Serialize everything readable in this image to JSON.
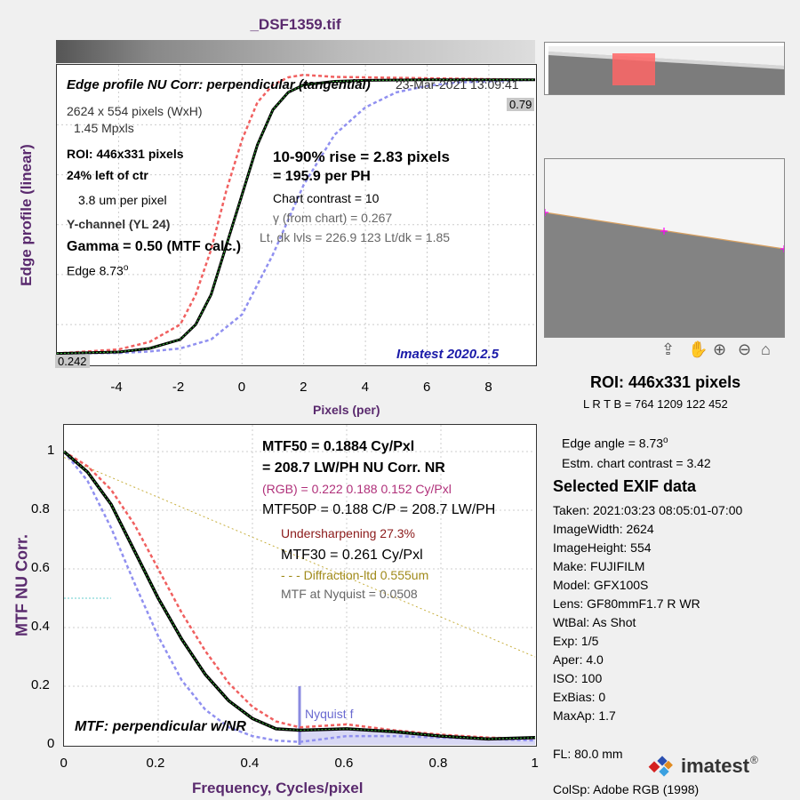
{
  "file_title": "_DSF1359.tif",
  "top_plot": {
    "title": "Edge profile  NU Corr: perpendicular (tangential)",
    "timestamp": "23-Mar-2021 13:09:41",
    "dims": "2624 x 554 pixels (WxH)",
    "mpxls": "1.45 Mpxls",
    "roi": "ROI:  446x331 pixels",
    "left_of_ctr": "24% left of ctr",
    "um_per_pixel": "3.8 um per pixel",
    "channel": "Y-channel  (YL 24)",
    "gamma": "Gamma = 0.50 (MTF calc.)",
    "edge_label": "Edge   8.73",
    "edge_deg": "o",
    "rise": "10-90% rise = 2.83 pixels",
    "per_ph": "=  195.9 per PH",
    "chart_contrast": "Chart contrast = 10",
    "gamma_chart": "γ (from chart) = 0.267",
    "levels": "Lt, dk lvls = 226.9  123  Lt/dk = 1.85",
    "version": "Imatest 2020.2.5",
    "max_label": "0.79",
    "min_label": "0.242",
    "xlabel": "Pixels (per)",
    "ylabel": "Edge profile (linear)",
    "xticks": [
      "-4",
      "-2",
      "0",
      "2",
      "4",
      "6",
      "8"
    ]
  },
  "right_panel": {
    "roi_title": "ROI:  446x331 pixels",
    "lrtb": "L R  T B = 764  1209   122  452",
    "edge_angle": "Edge angle = 8.73",
    "edge_angle_deg": "o",
    "estm_contrast": "Estm. chart contrast = 3.42",
    "exif_title": "Selected EXIF data",
    "exif": [
      "Taken: 2021:03:23 08:05:01-07:00",
      "ImageWidth:  2624",
      "ImageHeight:  554",
      "Make:  FUJIFILM",
      "Model:  GFX100S",
      "Lens:   GF80mmF1.7 R WR",
      "WtBal:  As Shot",
      "Exp:    1/5",
      "Aper:   4.0",
      "ISO:    100",
      "ExBias:  0",
      "MaxAp:  1.7"
    ],
    "fl": "FL:      80.0 mm",
    "colsp": "ColSp:  Adobe RGB (1998)",
    "brand": "imatest",
    "brand_mark": "®"
  },
  "bottom_plot": {
    "mtf50": "MTF50 = 0.1884 Cy/Pxl",
    "mtf50_lwph": "= 208.7 LW/PH  NU Corr.  NR",
    "rgb": "(RGB) = 0.222  0.188  0.152 Cy/Pxl",
    "mtf50p": "MTF50P = 0.188 C/P = 208.7 LW/PH",
    "undersharp": "Undersharpening 27.3%",
    "mtf30": "MTF30 = 0.261 Cy/Pxl",
    "diffraction": "- - - Diffraction-ltd  0.555um",
    "nyquist_mtf": "MTF at Nyquist = 0.0508",
    "nyquist_label": "Nyquist f",
    "caption": "MTF: perpendicular w/NR",
    "xlabel": "Frequency, Cycles/pixel",
    "ylabel": "MTF  NU Corr.",
    "xticks": [
      "0",
      "0.2",
      "0.4",
      "0.6",
      "0.8",
      "1"
    ],
    "yticks": [
      "0",
      "0.2",
      "0.4",
      "0.6",
      "0.8",
      "1"
    ]
  },
  "chart_data": [
    {
      "type": "line",
      "xlabel": "Pixels (per)",
      "ylabel": "Edge profile (linear)",
      "xlim": [
        -6,
        9.5
      ],
      "ylim": [
        0.22,
        0.82
      ],
      "series": [
        {
          "x": [
            -6,
            -4,
            -3,
            -2,
            -1.5,
            -1,
            -0.5,
            0,
            0.5,
            1,
            1.5,
            2,
            3,
            4,
            6,
            9.5
          ],
          "y": [
            0.242,
            0.245,
            0.252,
            0.27,
            0.3,
            0.36,
            0.46,
            0.56,
            0.66,
            0.73,
            0.765,
            0.78,
            0.787,
            0.789,
            0.79,
            0.79
          ]
        },
        {
          "x": [
            -6,
            -4,
            -3,
            -2,
            -1.5,
            -1,
            -0.5,
            0,
            0.5,
            1,
            1.5,
            2,
            3,
            9.5
          ],
          "y": [
            0.242,
            0.25,
            0.265,
            0.3,
            0.36,
            0.45,
            0.57,
            0.67,
            0.745,
            0.78,
            0.795,
            0.8,
            0.796,
            0.79
          ]
        },
        {
          "x": [
            -6,
            -4,
            -3,
            -2,
            -1,
            0,
            1,
            2,
            3,
            4,
            5,
            6,
            7,
            9.5
          ],
          "y": [
            0.242,
            0.243,
            0.246,
            0.252,
            0.27,
            0.32,
            0.44,
            0.58,
            0.68,
            0.735,
            0.765,
            0.778,
            0.785,
            0.79
          ]
        }
      ]
    },
    {
      "type": "line",
      "xlabel": "Frequency, Cycles/pixel",
      "ylabel": "MTF  NU Corr.",
      "xlim": [
        0,
        1
      ],
      "ylim": [
        0,
        1
      ],
      "series": [
        {
          "x": [
            0,
            0.05,
            0.1,
            0.15,
            0.2,
            0.25,
            0.3,
            0.35,
            0.4,
            0.45,
            0.5,
            0.6,
            0.7,
            0.8,
            0.9,
            1
          ],
          "y": [
            1,
            0.93,
            0.82,
            0.66,
            0.5,
            0.36,
            0.24,
            0.15,
            0.09,
            0.055,
            0.05,
            0.055,
            0.045,
            0.03,
            0.02,
            0.025
          ]
        },
        {
          "x": [
            0,
            0.05,
            0.1,
            0.15,
            0.2,
            0.25,
            0.3,
            0.35,
            0.4,
            0.45,
            0.5,
            0.6,
            0.7,
            0.8,
            0.9,
            1
          ],
          "y": [
            1,
            0.95,
            0.87,
            0.75,
            0.6,
            0.45,
            0.32,
            0.21,
            0.13,
            0.08,
            0.06,
            0.07,
            0.05,
            0.035,
            0.025,
            0.02
          ]
        },
        {
          "x": [
            0,
            0.05,
            0.1,
            0.15,
            0.2,
            0.25,
            0.3,
            0.35,
            0.4,
            0.45,
            0.5,
            0.6,
            0.7,
            0.8,
            0.9,
            1
          ],
          "y": [
            1,
            0.9,
            0.74,
            0.55,
            0.37,
            0.22,
            0.12,
            0.06,
            0.03,
            0.015,
            0.01,
            0.03,
            0.03,
            0.025,
            0.02,
            0.015
          ]
        },
        {
          "x": [
            0,
            1
          ],
          "y": [
            0.98,
            0.3
          ]
        }
      ]
    }
  ]
}
